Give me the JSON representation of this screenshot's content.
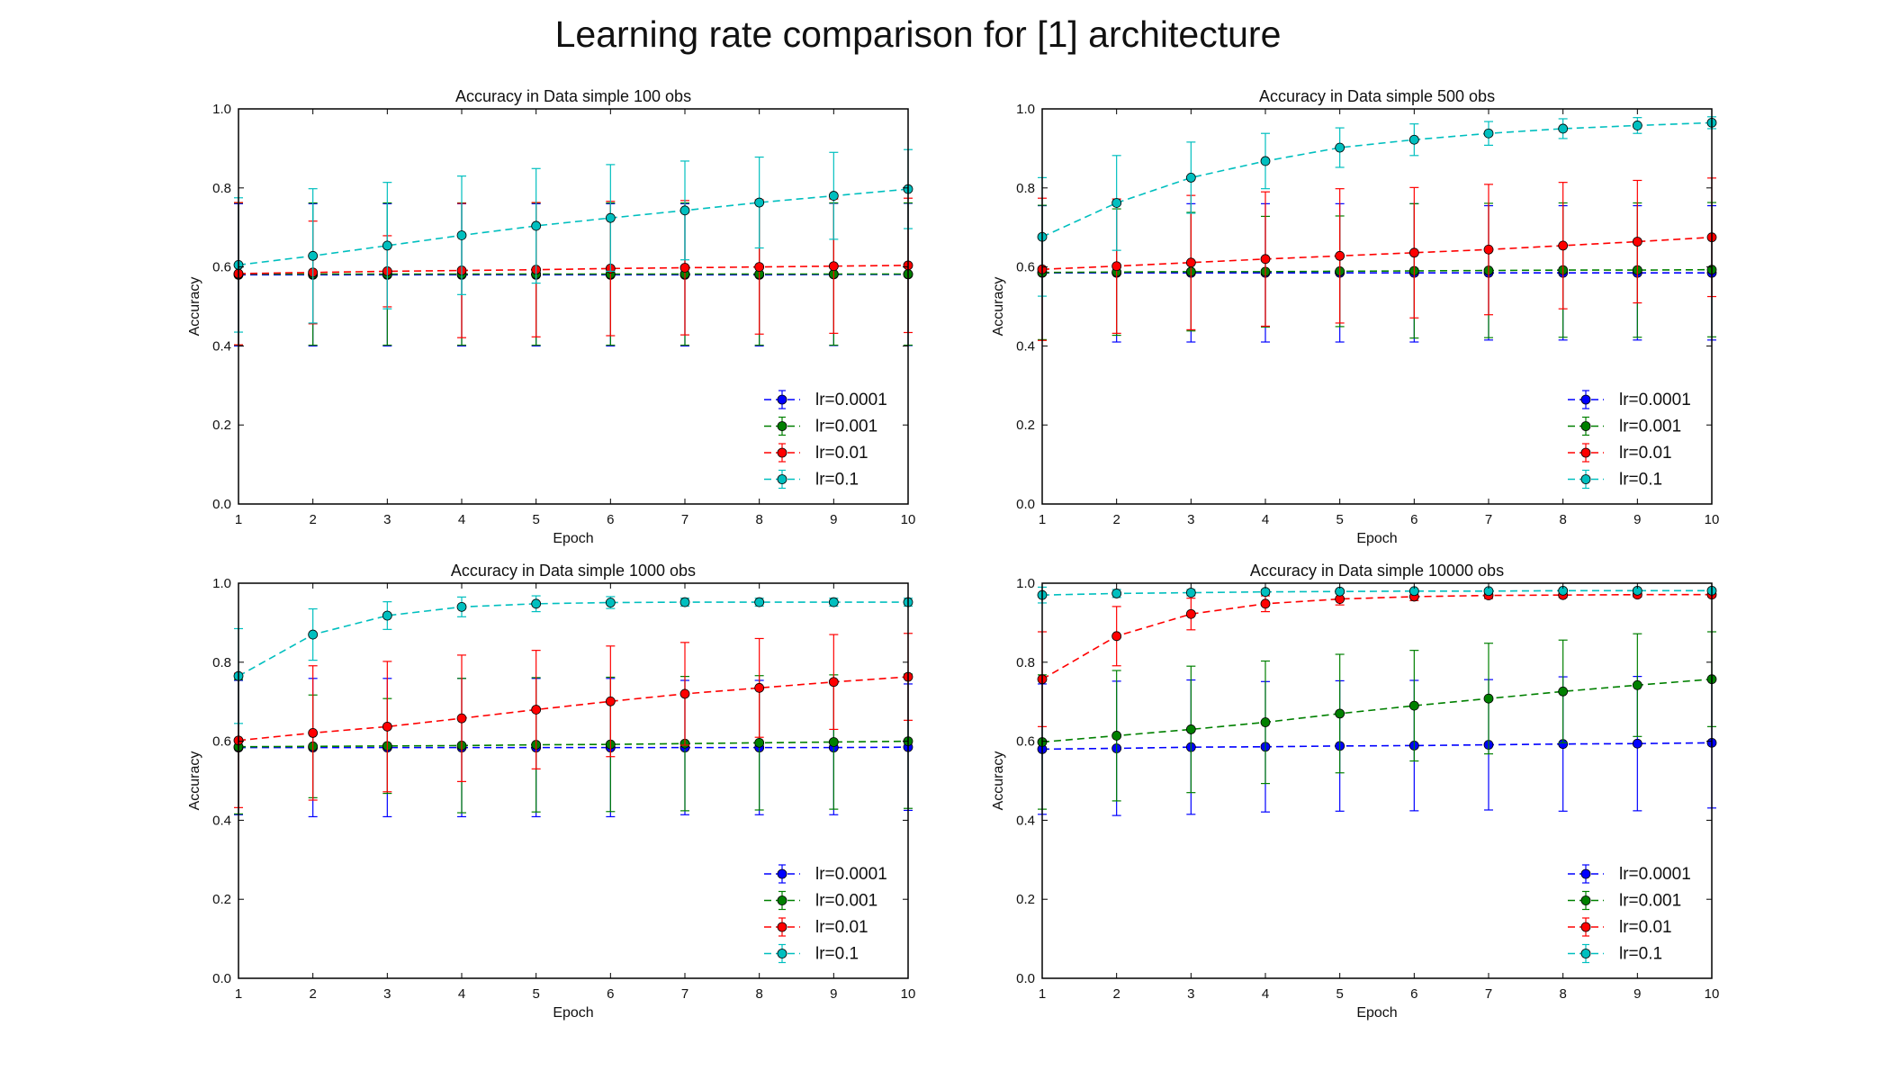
{
  "figure": {
    "title": "Learning rate comparison for [1] architecture"
  },
  "chart_data": [
    {
      "type": "line",
      "title": "Accuracy in Data simple 100 obs",
      "xlabel": "Epoch",
      "ylabel": "Accuracy",
      "xlim": [
        1,
        10
      ],
      "ylim": [
        0.0,
        1.0
      ],
      "xticks": [
        "1",
        "2",
        "3",
        "4",
        "5",
        "6",
        "7",
        "8",
        "9",
        "10"
      ],
      "yticks": [
        "0.0",
        "0.2",
        "0.4",
        "0.6",
        "0.8",
        "1.0"
      ],
      "grid": false,
      "legend_position": "lower-right",
      "x": [
        1,
        2,
        3,
        4,
        5,
        6,
        7,
        8,
        9,
        10
      ],
      "series": [
        {
          "name": "lr=0.0001",
          "color": "#0000ff",
          "values": [
            0.58,
            0.58,
            0.58,
            0.58,
            0.58,
            0.58,
            0.58,
            0.58,
            0.581,
            0.581
          ],
          "err": [
            0.18,
            0.18,
            0.18,
            0.18,
            0.18,
            0.18,
            0.18,
            0.18,
            0.18,
            0.18
          ]
        },
        {
          "name": "lr=0.001",
          "color": "#008000",
          "values": [
            0.582,
            0.582,
            0.582,
            0.582,
            0.582,
            0.582,
            0.582,
            0.582,
            0.582,
            0.582
          ],
          "err": [
            0.18,
            0.18,
            0.18,
            0.18,
            0.18,
            0.18,
            0.18,
            0.18,
            0.18,
            0.18
          ]
        },
        {
          "name": "lr=0.01",
          "color": "#ff0000",
          "values": [
            0.583,
            0.586,
            0.589,
            0.591,
            0.593,
            0.596,
            0.598,
            0.6,
            0.602,
            0.604
          ],
          "err": [
            0.18,
            0.13,
            0.09,
            0.17,
            0.17,
            0.17,
            0.17,
            0.17,
            0.17,
            0.17
          ]
        },
        {
          "name": "lr=0.1",
          "color": "#00bfbf",
          "values": [
            0.605,
            0.628,
            0.654,
            0.68,
            0.704,
            0.724,
            0.743,
            0.763,
            0.78,
            0.797
          ],
          "err": [
            0.17,
            0.17,
            0.16,
            0.15,
            0.145,
            0.135,
            0.125,
            0.115,
            0.11,
            0.1
          ]
        }
      ]
    },
    {
      "type": "line",
      "title": "Accuracy in Data simple 500 obs",
      "xlabel": "Epoch",
      "ylabel": "Accuracy",
      "xlim": [
        1,
        10
      ],
      "ylim": [
        0.0,
        1.0
      ],
      "xticks": [
        "1",
        "2",
        "3",
        "4",
        "5",
        "6",
        "7",
        "8",
        "9",
        "10"
      ],
      "yticks": [
        "0.0",
        "0.2",
        "0.4",
        "0.6",
        "0.8",
        "1.0"
      ],
      "grid": false,
      "legend_position": "lower-right",
      "x": [
        1,
        2,
        3,
        4,
        5,
        6,
        7,
        8,
        9,
        10
      ],
      "series": [
        {
          "name": "lr=0.0001",
          "color": "#0000ff",
          "values": [
            0.585,
            0.585,
            0.585,
            0.585,
            0.585,
            0.585,
            0.585,
            0.585,
            0.585,
            0.585
          ],
          "err": [
            0.17,
            0.175,
            0.175,
            0.175,
            0.175,
            0.175,
            0.17,
            0.17,
            0.17,
            0.17
          ]
        },
        {
          "name": "lr=0.001",
          "color": "#008000",
          "values": [
            0.586,
            0.587,
            0.588,
            0.588,
            0.589,
            0.59,
            0.591,
            0.592,
            0.592,
            0.593
          ],
          "err": [
            0.17,
            0.16,
            0.15,
            0.14,
            0.14,
            0.17,
            0.17,
            0.17,
            0.17,
            0.17
          ]
        },
        {
          "name": "lr=0.01",
          "color": "#ff0000",
          "values": [
            0.594,
            0.602,
            0.611,
            0.62,
            0.628,
            0.636,
            0.644,
            0.654,
            0.664,
            0.675
          ],
          "err": [
            0.18,
            0.17,
            0.17,
            0.17,
            0.17,
            0.165,
            0.165,
            0.16,
            0.155,
            0.15
          ]
        },
        {
          "name": "lr=0.1",
          "color": "#00bfbf",
          "values": [
            0.676,
            0.762,
            0.826,
            0.868,
            0.902,
            0.922,
            0.938,
            0.95,
            0.958,
            0.965
          ],
          "err": [
            0.15,
            0.12,
            0.09,
            0.07,
            0.05,
            0.04,
            0.03,
            0.025,
            0.02,
            0.015
          ]
        }
      ]
    },
    {
      "type": "line",
      "title": "Accuracy in Data simple 1000 obs",
      "xlabel": "Epoch",
      "ylabel": "Accuracy",
      "xlim": [
        1,
        10
      ],
      "ylim": [
        0.0,
        1.0
      ],
      "xticks": [
        "1",
        "2",
        "3",
        "4",
        "5",
        "6",
        "7",
        "8",
        "9",
        "10"
      ],
      "yticks": [
        "0.0",
        "0.2",
        "0.4",
        "0.6",
        "0.8",
        "1.0"
      ],
      "grid": false,
      "legend_position": "lower-right",
      "x": [
        1,
        2,
        3,
        4,
        5,
        6,
        7,
        8,
        9,
        10
      ],
      "series": [
        {
          "name": "lr=0.0001",
          "color": "#0000ff",
          "values": [
            0.584,
            0.584,
            0.584,
            0.584,
            0.584,
            0.584,
            0.584,
            0.584,
            0.584,
            0.585
          ],
          "err": [
            0.17,
            0.175,
            0.175,
            0.175,
            0.175,
            0.175,
            0.17,
            0.17,
            0.17,
            0.16
          ]
        },
        {
          "name": "lr=0.001",
          "color": "#008000",
          "values": [
            0.586,
            0.587,
            0.588,
            0.589,
            0.591,
            0.592,
            0.594,
            0.596,
            0.598,
            0.6
          ],
          "err": [
            0.17,
            0.13,
            0.12,
            0.17,
            0.17,
            0.17,
            0.17,
            0.17,
            0.17,
            0.17
          ]
        },
        {
          "name": "lr=0.01",
          "color": "#ff0000",
          "values": [
            0.602,
            0.621,
            0.637,
            0.658,
            0.68,
            0.701,
            0.72,
            0.735,
            0.75,
            0.763
          ],
          "err": [
            0.17,
            0.17,
            0.165,
            0.16,
            0.15,
            0.14,
            0.13,
            0.125,
            0.12,
            0.11
          ]
        },
        {
          "name": "lr=0.1",
          "color": "#00bfbf",
          "values": [
            0.765,
            0.87,
            0.918,
            0.94,
            0.948,
            0.951,
            0.952,
            0.952,
            0.952,
            0.952
          ],
          "err": [
            0.12,
            0.065,
            0.035,
            0.025,
            0.02,
            0.015,
            0.01,
            0.01,
            0.01,
            0.01
          ]
        }
      ]
    },
    {
      "type": "line",
      "title": "Accuracy in Data simple 10000 obs",
      "xlabel": "Epoch",
      "ylabel": "Accuracy",
      "xlim": [
        1,
        10
      ],
      "ylim": [
        0.0,
        1.0
      ],
      "xticks": [
        "1",
        "2",
        "3",
        "4",
        "5",
        "6",
        "7",
        "8",
        "9",
        "10"
      ],
      "yticks": [
        "0.0",
        "0.2",
        "0.4",
        "0.6",
        "0.8",
        "1.0"
      ],
      "grid": false,
      "legend_position": "lower-right",
      "x": [
        1,
        2,
        3,
        4,
        5,
        6,
        7,
        8,
        9,
        10
      ],
      "series": [
        {
          "name": "lr=0.0001",
          "color": "#0000ff",
          "values": [
            0.58,
            0.582,
            0.585,
            0.586,
            0.588,
            0.589,
            0.591,
            0.593,
            0.594,
            0.596
          ],
          "err": [
            0.165,
            0.17,
            0.17,
            0.165,
            0.165,
            0.165,
            0.165,
            0.17,
            0.17,
            0.165
          ]
        },
        {
          "name": "lr=0.001",
          "color": "#008000",
          "values": [
            0.598,
            0.614,
            0.63,
            0.648,
            0.67,
            0.69,
            0.708,
            0.726,
            0.742,
            0.757
          ],
          "err": [
            0.17,
            0.165,
            0.16,
            0.155,
            0.15,
            0.14,
            0.14,
            0.13,
            0.13,
            0.12
          ]
        },
        {
          "name": "lr=0.01",
          "color": "#ff0000",
          "values": [
            0.757,
            0.866,
            0.922,
            0.948,
            0.96,
            0.966,
            0.969,
            0.97,
            0.971,
            0.971
          ],
          "err": [
            0.12,
            0.075,
            0.04,
            0.02,
            0.015,
            0.01,
            0.008,
            0.006,
            0.006,
            0.005
          ]
        },
        {
          "name": "lr=0.1",
          "color": "#00bfbf",
          "values": [
            0.97,
            0.974,
            0.976,
            0.978,
            0.979,
            0.98,
            0.98,
            0.981,
            0.981,
            0.981
          ],
          "err": [
            0.02,
            0.01,
            0.008,
            0.006,
            0.005,
            0.004,
            0.004,
            0.004,
            0.003,
            0.003
          ]
        }
      ]
    }
  ]
}
